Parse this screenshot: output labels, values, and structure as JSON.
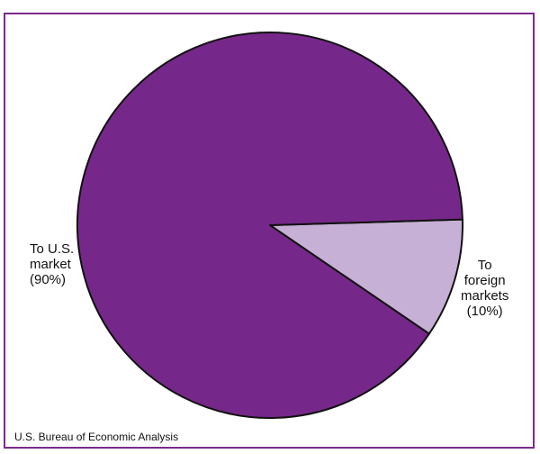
{
  "chart_data": {
    "type": "pie",
    "title": "",
    "slices": [
      {
        "label_lines": [
          "To U.S.",
          "market",
          "(90%)"
        ],
        "value": 90,
        "color": "#76288a"
      },
      {
        "label_lines": [
          "To",
          "foreign",
          "markets",
          "(10%)"
        ],
        "value": 10,
        "color": "#c6b0d5"
      }
    ],
    "source": "U.S. Bureau of Economic Analysis",
    "frame_color": "#7b2a8c",
    "outline_color": "#111111"
  }
}
